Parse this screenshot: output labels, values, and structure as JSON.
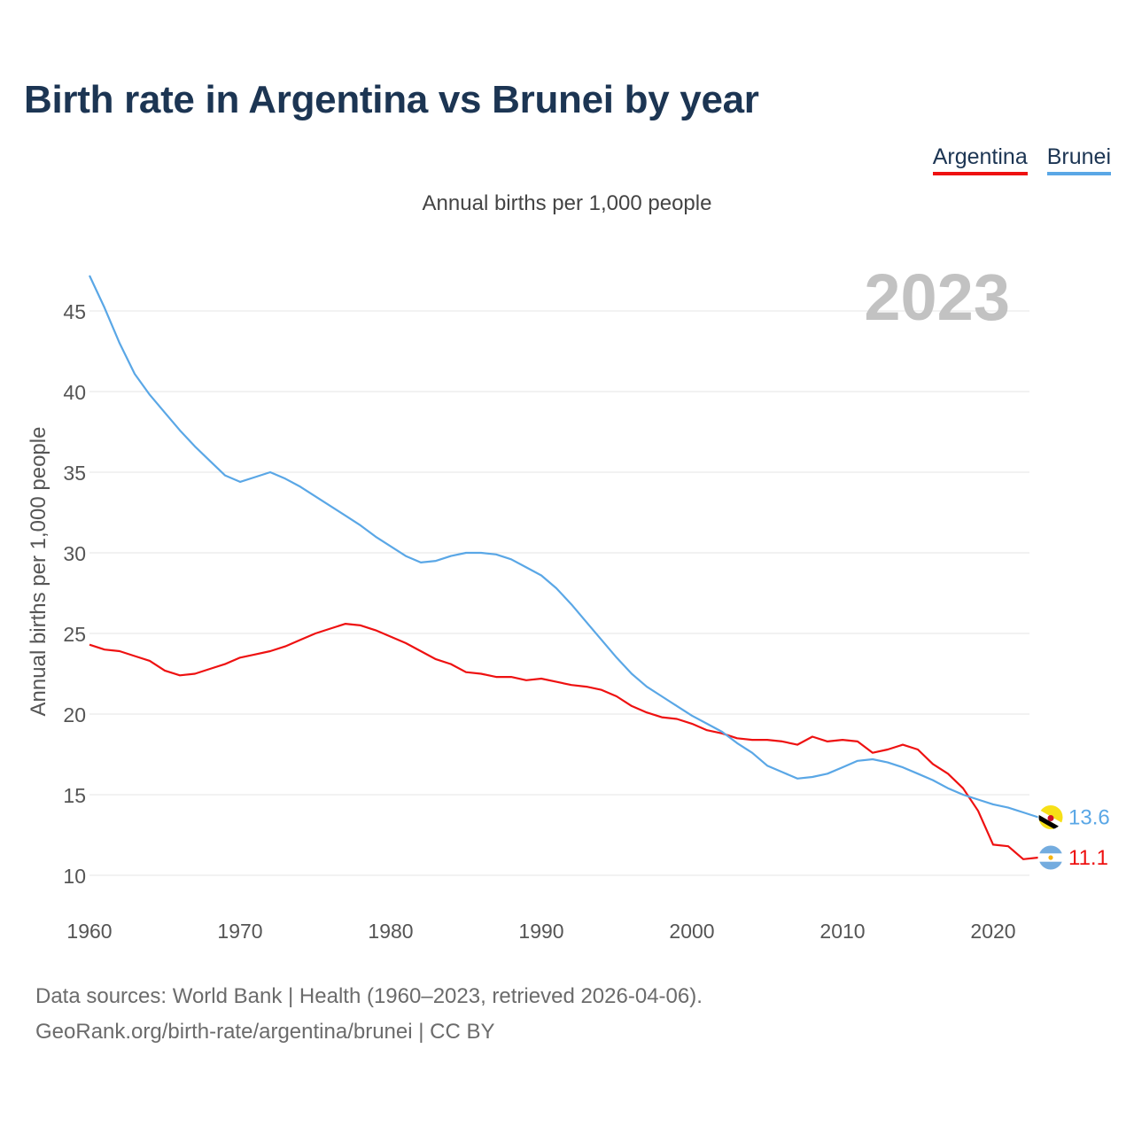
{
  "title": "Birth rate in Argentina vs Brunei by year",
  "legend": [
    {
      "label": "Argentina",
      "color": "#ee1111"
    },
    {
      "label": "Brunei",
      "color": "#5aa7e6"
    }
  ],
  "subtitle": "Annual births per 1,000 people",
  "year_label": "2023",
  "sources": {
    "line1": "Data sources: World Bank | Health (1960–2023, retrieved 2026-04-06).",
    "line2": "GeoRank.org/birth-rate/argentina/brunei | CC BY"
  },
  "chart_data": {
    "type": "line",
    "title": "Birth rate in Argentina vs Brunei by year",
    "ylabel": "Annual births per 1,000 people",
    "xlabel": "",
    "xlim": [
      1960,
      2023
    ],
    "ylim": [
      8,
      47.5
    ],
    "x_ticks": [
      1960,
      1970,
      1980,
      1990,
      2000,
      2010,
      2020
    ],
    "y_ticks": [
      10,
      15,
      20,
      25,
      30,
      35,
      40,
      45
    ],
    "grid": true,
    "legend_position": "top-right",
    "x": [
      1960,
      1961,
      1962,
      1963,
      1964,
      1965,
      1966,
      1967,
      1968,
      1969,
      1970,
      1971,
      1972,
      1973,
      1974,
      1975,
      1976,
      1977,
      1978,
      1979,
      1980,
      1981,
      1982,
      1983,
      1984,
      1985,
      1986,
      1987,
      1988,
      1989,
      1990,
      1991,
      1992,
      1993,
      1994,
      1995,
      1996,
      1997,
      1998,
      1999,
      2000,
      2001,
      2002,
      2003,
      2004,
      2005,
      2006,
      2007,
      2008,
      2009,
      2010,
      2011,
      2012,
      2013,
      2014,
      2015,
      2016,
      2017,
      2018,
      2019,
      2020,
      2021,
      2022,
      2023
    ],
    "series": [
      {
        "name": "Argentina",
        "color": "#ee1111",
        "end_label": "11.1",
        "flag": "argentina-flag-icon",
        "values": [
          24.3,
          24.0,
          23.9,
          23.6,
          23.3,
          22.7,
          22.4,
          22.5,
          22.8,
          23.1,
          23.5,
          23.7,
          23.9,
          24.2,
          24.6,
          25.0,
          25.3,
          25.6,
          25.5,
          25.2,
          24.8,
          24.4,
          23.9,
          23.4,
          23.1,
          22.6,
          22.5,
          22.3,
          22.3,
          22.1,
          22.2,
          22.0,
          21.8,
          21.7,
          21.5,
          21.1,
          20.5,
          20.1,
          19.8,
          19.7,
          19.4,
          19.0,
          18.8,
          18.5,
          18.4,
          18.4,
          18.3,
          18.1,
          18.6,
          18.3,
          18.4,
          18.3,
          17.6,
          17.8,
          18.1,
          17.8,
          16.9,
          16.3,
          15.4,
          14.0,
          11.9,
          11.8,
          11.0,
          11.1
        ]
      },
      {
        "name": "Brunei",
        "color": "#5aa7e6",
        "end_label": "13.6",
        "flag": "brunei-flag-icon",
        "values": [
          47.2,
          45.2,
          43.0,
          41.1,
          39.8,
          38.7,
          37.6,
          36.6,
          35.7,
          34.8,
          34.4,
          34.7,
          35.0,
          34.6,
          34.1,
          33.5,
          32.9,
          32.3,
          31.7,
          31.0,
          30.4,
          29.8,
          29.4,
          29.5,
          29.8,
          30.0,
          30.0,
          29.9,
          29.6,
          29.1,
          28.6,
          27.8,
          26.8,
          25.7,
          24.6,
          23.5,
          22.5,
          21.7,
          21.1,
          20.5,
          19.9,
          19.4,
          18.9,
          18.2,
          17.6,
          16.8,
          16.4,
          16.0,
          16.1,
          16.3,
          16.7,
          17.1,
          17.2,
          17.0,
          16.7,
          16.3,
          15.9,
          15.4,
          15.0,
          14.7,
          14.4,
          14.2,
          13.9,
          13.6
        ]
      }
    ]
  }
}
